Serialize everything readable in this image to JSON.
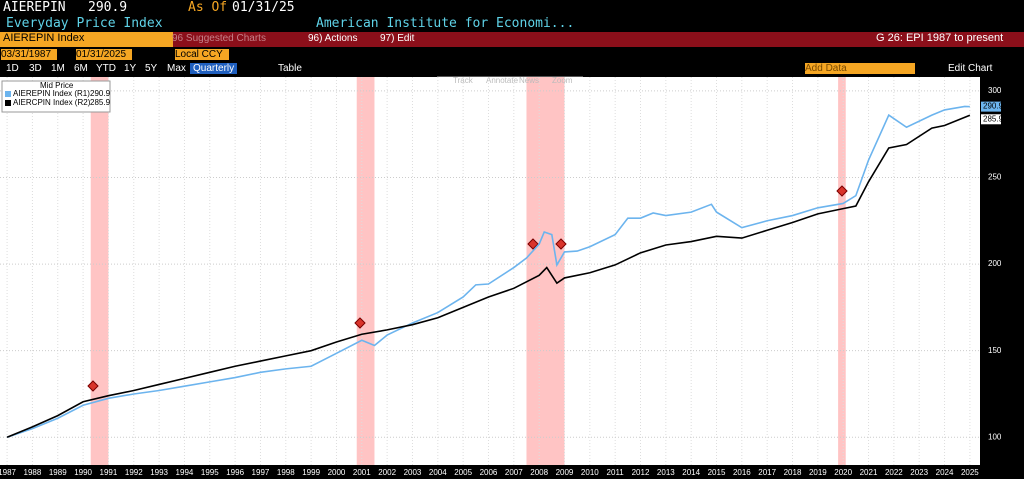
{
  "header": {
    "ticker": "AIEREPIN",
    "value": "290.9",
    "as_of_label": "As Of",
    "as_of_date": "01/31/25",
    "name": "Everyday Price Index",
    "source": "American Institute for Economi..."
  },
  "toolbar": {
    "security": "AIEREPIN Index",
    "suggested": "96 Suggested Charts",
    "actions": "96) Actions",
    "edit": "97) Edit",
    "chart_title": "G 26: EPI 1987 to present",
    "start_date": "03/31/1987",
    "end_date": "01/31/2025",
    "currency": "Local CCY",
    "periods": [
      "1D",
      "3D",
      "1M",
      "6M",
      "YTD",
      "1Y",
      "5Y",
      "Max"
    ],
    "frequency": "Quarterly",
    "table": "Table",
    "add_data": "Add Data",
    "edit_chart": "Edit Chart"
  },
  "overlay": [
    "Track",
    "Annotate",
    "News",
    "Zoom"
  ],
  "chart_data": {
    "type": "line",
    "legend_title": "Mid Price",
    "series": [
      {
        "name": "AIEREPIN Index (R1)",
        "last": 290.9,
        "color": "#6cb4ee",
        "x": [
          1987,
          1988,
          1989,
          1990,
          1991,
          1992,
          1993,
          1994,
          1995,
          1996,
          1997,
          1998,
          1999,
          2000,
          2001,
          2001.5,
          2002,
          2003,
          2004,
          2005,
          2005.5,
          2006,
          2007,
          2007.5,
          2008,
          2008.2,
          2008.5,
          2008.7,
          2009,
          2009.5,
          2010,
          2011,
          2011.5,
          2012,
          2012.5,
          2013,
          2014,
          2014.8,
          2015,
          2016,
          2017,
          2018,
          2019,
          2020,
          2020.5,
          2021,
          2021.8,
          2022.5,
          2023.5,
          2024,
          2024.8,
          2025
        ],
        "values": [
          100,
          105,
          111,
          118.5,
          122.5,
          125,
          127,
          129.5,
          132,
          134.5,
          137.5,
          139.5,
          141,
          148.5,
          156,
          153,
          159,
          166,
          172,
          181,
          188,
          188.5,
          198,
          203.5,
          211.5,
          218.5,
          217,
          199.5,
          207,
          207.5,
          210,
          217,
          226.5,
          226.5,
          229.5,
          228,
          230,
          234.5,
          230,
          221,
          225,
          228,
          232.5,
          235,
          239.5,
          260,
          286,
          279,
          286,
          289,
          291,
          290.9
        ]
      },
      {
        "name": "AIERCPIN Index (R2)",
        "last": 285.9,
        "color": "#000000",
        "x": [
          1987,
          1988,
          1989,
          1990,
          1991,
          1992,
          1993,
          1994,
          1995,
          1996,
          1997,
          1998,
          1999,
          2000,
          2001,
          2002,
          2003,
          2004,
          2005,
          2006,
          2007,
          2008,
          2008.3,
          2008.7,
          2009,
          2010,
          2011,
          2012,
          2013,
          2014,
          2015,
          2016,
          2017,
          2018,
          2019,
          2020,
          2020.5,
          2021,
          2021.8,
          2022.5,
          2023.5,
          2024,
          2025
        ],
        "values": [
          100,
          106,
          112.5,
          120.5,
          124,
          127,
          130.5,
          134,
          137.5,
          141,
          144,
          147,
          150,
          155,
          159.5,
          162,
          165,
          169,
          175,
          181,
          186,
          193.5,
          198,
          189,
          192,
          195,
          199.5,
          206.5,
          211,
          213,
          216,
          215,
          219.5,
          224,
          229,
          232,
          233.5,
          247.5,
          267,
          269,
          278.5,
          280,
          285.9
        ]
      }
    ],
    "shaded_periods": [
      [
        1990.3,
        1991.0
      ],
      [
        2000.8,
        2001.5
      ],
      [
        2007.5,
        2009.0
      ],
      [
        2019.8,
        2020.1
      ]
    ],
    "xlim": [
      1986.72,
      2025.4
    ],
    "xticks": [
      1987,
      1988,
      1989,
      1990,
      1991,
      1992,
      1993,
      1994,
      1995,
      1996,
      1997,
      1998,
      1999,
      2000,
      2001,
      2002,
      2003,
      2004,
      2005,
      2006,
      2007,
      2008,
      2009,
      2010,
      2011,
      2012,
      2013,
      2014,
      2015,
      2016,
      2017,
      2018,
      2019,
      2020,
      2021,
      2022,
      2023,
      2024,
      2025
    ],
    "ylim": [
      84,
      308
    ],
    "yticks": [
      100,
      150,
      200,
      250,
      300
    ],
    "grid": true
  }
}
